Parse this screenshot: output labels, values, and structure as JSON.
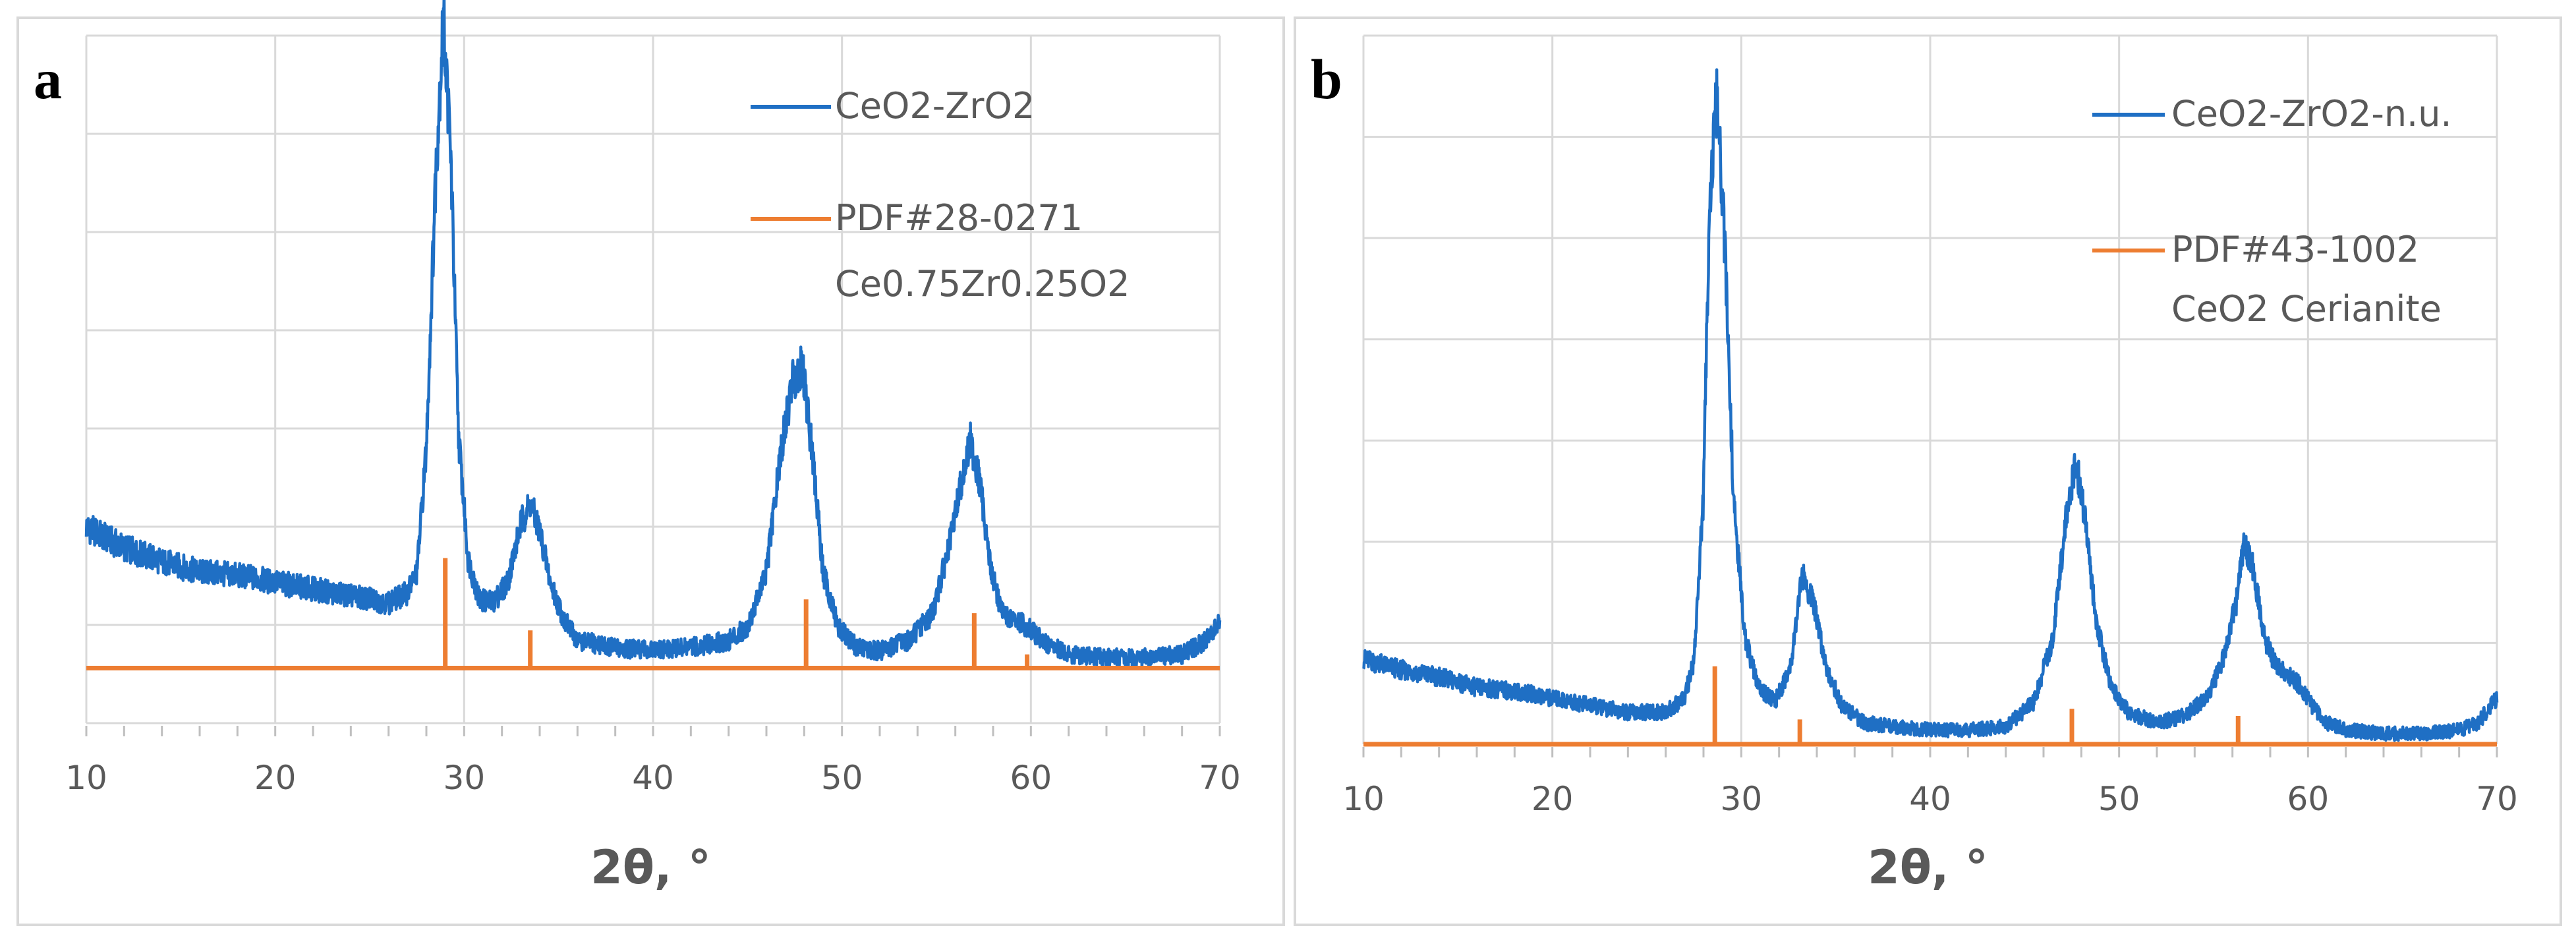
{
  "chart_data": [
    {
      "type": "line",
      "panel_label": "a",
      "xlabel": "2θ, °",
      "ylabel": "",
      "xlim": [
        10,
        70
      ],
      "xticks": [
        10,
        20,
        30,
        40,
        50,
        60,
        70
      ],
      "ylim": [
        0,
        100
      ],
      "baseline": 8,
      "legend_position": "top-right",
      "series": [
        {
          "name": "CeO2-ZrO2",
          "kind": "line",
          "color": "#1F6FC4",
          "x": [
            10,
            12,
            14,
            16,
            18,
            20,
            22,
            24,
            26,
            27,
            27.5,
            28,
            28.5,
            28.9,
            29.3,
            29.7,
            30.2,
            30.8,
            31.5,
            32.3,
            33,
            33.5,
            34,
            34.6,
            35.3,
            36,
            38,
            40,
            42,
            44,
            45,
            46,
            46.8,
            47.4,
            47.9,
            48.4,
            49,
            49.8,
            50.8,
            52,
            53.5,
            54.8,
            55.7,
            56.3,
            56.8,
            57.3,
            57.9,
            58.5,
            59,
            59.5,
            60,
            60.8,
            62,
            64,
            66,
            68,
            69,
            70
          ],
          "values": [
            28.5,
            25.5,
            23.5,
            22,
            21.5,
            20.5,
            19.5,
            18.5,
            17.5,
            19,
            22,
            40,
            80,
            103,
            82,
            42,
            24,
            18,
            17.5,
            20.5,
            29,
            32,
            28,
            20,
            15,
            12,
            11,
            10.5,
            11,
            12,
            14,
            22,
            40,
            50,
            52,
            40,
            22,
            14,
            11,
            10.5,
            12,
            16,
            26,
            35,
            41,
            35,
            22,
            16,
            15,
            14.5,
            13.5,
            11.5,
            10,
            9.5,
            9.5,
            10,
            11.5,
            14.5
          ]
        },
        {
          "name": "PDF#28-0271 Ce0.75Zr0.25O2",
          "legend_lines": [
            "PDF#28-0271",
            "Ce0.75Zr0.25O2"
          ],
          "kind": "reference-sticks",
          "color": "#ED7D31",
          "x": [
            29.0,
            33.5,
            48.1,
            57.0,
            59.8
          ],
          "values": [
            24,
            13.5,
            18,
            16,
            10
          ]
        }
      ]
    },
    {
      "type": "line",
      "panel_label": "b",
      "xlabel": "2θ, °",
      "ylabel": "",
      "xlim": [
        10,
        70
      ],
      "xticks": [
        10,
        20,
        30,
        40,
        50,
        60,
        70
      ],
      "ylim": [
        0,
        100
      ],
      "baseline": 0,
      "legend_position": "top-right",
      "series": [
        {
          "name": "CeO2-ZrO2-n.u.",
          "kind": "line",
          "color": "#1F6FC4",
          "x": [
            10,
            12,
            14,
            16,
            18,
            20,
            22,
            24,
            26,
            27,
            27.5,
            28,
            28.3,
            28.7,
            29.1,
            29.6,
            30.2,
            30.9,
            31.8,
            32.6,
            33.2,
            33.8,
            34.5,
            35.3,
            36.5,
            38,
            40,
            42,
            44,
            45.5,
            46.5,
            47.2,
            47.7,
            48.2,
            48.8,
            49.6,
            50.5,
            52,
            53.5,
            54.8,
            55.6,
            56.2,
            56.6,
            57.1,
            57.7,
            58.3,
            58.9,
            59.5,
            60.2,
            61,
            62,
            64,
            66,
            68,
            69,
            70
          ],
          "values": [
            12,
            10.5,
            9.5,
            8,
            7.5,
            6.5,
            5.5,
            4.5,
            4.5,
            6.5,
            12,
            35,
            75,
            91,
            72,
            34,
            15,
            8,
            6,
            11,
            24,
            20,
            11,
            5.5,
            3,
            2.5,
            2,
            2,
            2.5,
            6,
            15,
            32,
            40,
            32,
            17,
            8,
            4.5,
            3,
            4,
            7,
            13,
            20,
            28,
            25,
            15,
            11,
            10,
            8.5,
            5.5,
            3,
            2,
            1.5,
            1.5,
            2,
            3,
            6.5
          ]
        },
        {
          "name": "PDF#43-1002 CeO2 Cerianite",
          "legend_lines": [
            "PDF#43-1002",
            "CeO2 Cerianite"
          ],
          "kind": "reference-sticks",
          "color": "#ED7D31",
          "x": [
            28.6,
            33.1,
            47.5,
            56.3
          ],
          "values": [
            11,
            3.5,
            5,
            4
          ]
        }
      ]
    }
  ]
}
